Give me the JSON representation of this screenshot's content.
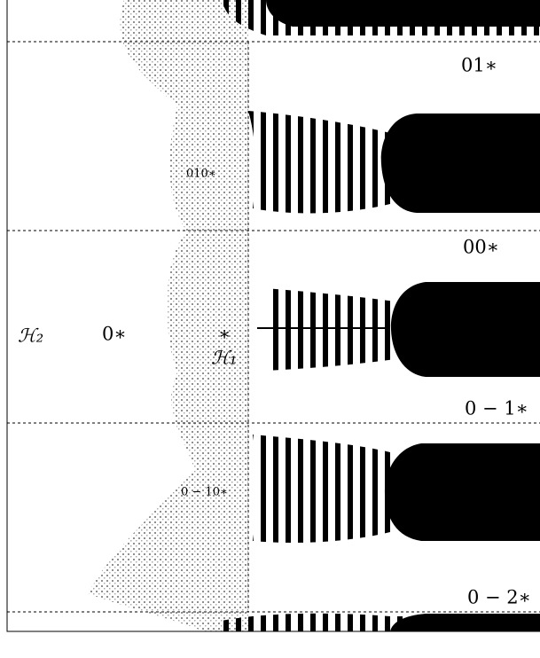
{
  "labels": {
    "top_right": "01∗",
    "upper_inner": "010∗",
    "mid_upper_right": "00∗",
    "h2": "ℋ₂",
    "zero": "0∗",
    "star": "∗",
    "h1": "ℋ₁",
    "mid_lower_right": "0 − 1∗",
    "lower_inner": "0 − 10∗",
    "bottom_right": "0 − 2∗"
  }
}
